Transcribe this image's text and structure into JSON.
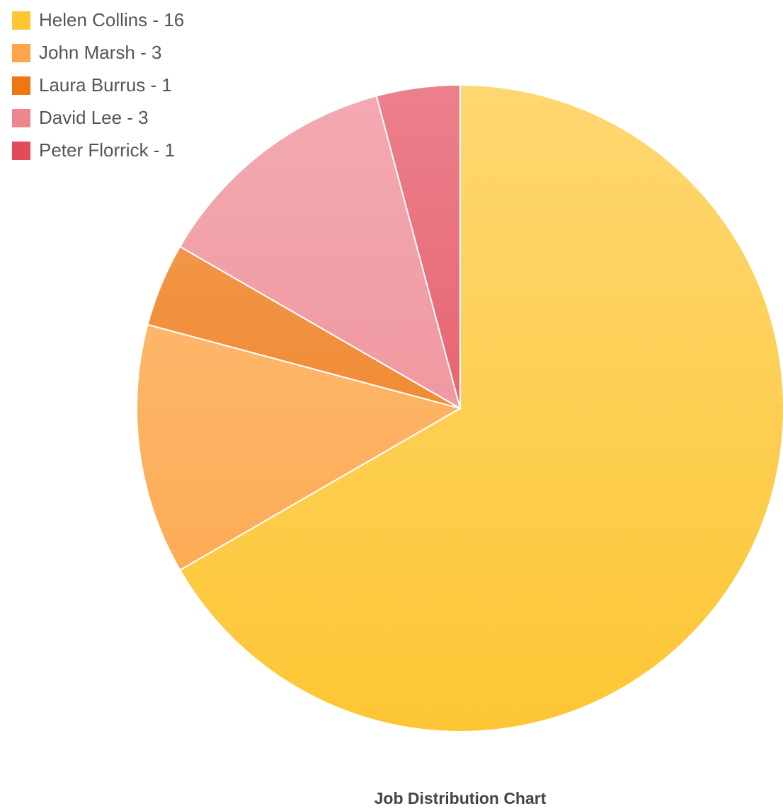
{
  "chart_data": {
    "type": "pie",
    "title": "Job Distribution Chart",
    "categories": [
      "Helen Collins - 16",
      "John Marsh - 3",
      "Laura Burrus - 1",
      "David Lee - 3",
      "Peter Florrick - 1"
    ],
    "values": [
      16,
      3,
      1,
      3,
      1
    ],
    "colors": [
      "#fdc634",
      "#fda548",
      "#ee7712",
      "#ee8690",
      "#e34a5a"
    ],
    "legend": "top-left"
  }
}
